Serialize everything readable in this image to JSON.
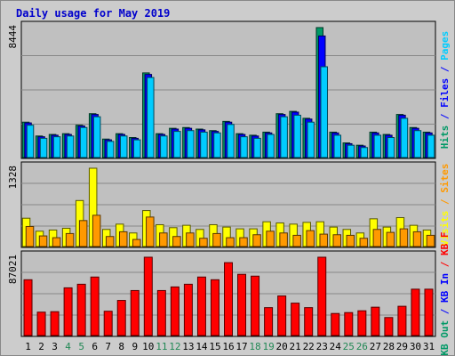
{
  "colors": {
    "background": "#cccccc",
    "panel": "#c0c0c0",
    "grid": "#888888",
    "border": "#000000",
    "title": "#0000cc",
    "hits": "#009966",
    "files": "#0000ff",
    "pages": "#00ccff",
    "visits": "#ffff00",
    "sites": "#ff9900",
    "kbout": "#009966",
    "kbin": "#0000ff",
    "kbf": "#ff0000",
    "weekend": "#228855",
    "weekday": "#000000"
  },
  "chart_data": {
    "type": "bar",
    "title": "Daily usage for May 2019",
    "categories": [
      "1",
      "2",
      "3",
      "4",
      "5",
      "6",
      "7",
      "8",
      "9",
      "10",
      "11",
      "12",
      "13",
      "14",
      "15",
      "16",
      "17",
      "18",
      "19",
      "20",
      "21",
      "22",
      "23",
      "24",
      "25",
      "26",
      "27",
      "28",
      "29",
      "30",
      "31"
    ],
    "weekend_days": [
      "4",
      "5",
      "11",
      "12",
      "18",
      "19",
      "25",
      "26"
    ],
    "panels": [
      {
        "max_label": "8444",
        "ymax": 8444,
        "side_legend": [
          {
            "text": "Hits",
            "color_key": "hits"
          },
          {
            "text": " / ",
            "color_key": "files"
          },
          {
            "text": "Files",
            "color_key": "files"
          },
          {
            "text": " / ",
            "color_key": "files"
          },
          {
            "text": "Pages",
            "color_key": "pages"
          }
        ],
        "series": [
          {
            "name": "Hits",
            "color_key": "hits",
            "values": [
              2300,
              1400,
              1500,
              1550,
              2100,
              2850,
              1200,
              1550,
              1300,
              5500,
              1550,
              1900,
              1950,
              1850,
              1750,
              2350,
              1550,
              1450,
              1650,
              2850,
              3000,
              2550,
              8444,
              1650,
              950,
              800,
              1650,
              1500,
              2800,
              1950,
              1650
            ]
          },
          {
            "name": "Files",
            "color_key": "files",
            "values": [
              2250,
              1350,
              1450,
              1500,
              2050,
              2800,
              1150,
              1500,
              1250,
              5400,
              1500,
              1850,
              1900,
              1800,
              1700,
              2300,
              1500,
              1400,
              1600,
              2800,
              2950,
              2500,
              7900,
              1600,
              900,
              750,
              1600,
              1450,
              2750,
              1900,
              1600
            ]
          },
          {
            "name": "Pages",
            "color_key": "pages",
            "values": [
              2100,
              1250,
              1350,
              1400,
              1950,
              2650,
              1050,
              1400,
              1150,
              5200,
              1400,
              1700,
              1750,
              1650,
              1600,
              2150,
              1350,
              1250,
              1500,
              2650,
              2750,
              2300,
              5900,
              1450,
              800,
              650,
              1450,
              1300,
              2550,
              1750,
              1450
            ]
          }
        ]
      },
      {
        "max_label": "1328",
        "ymax": 1328,
        "side_legend": [
          {
            "text": "Visits",
            "color_key": "visits"
          },
          {
            "text": " / ",
            "color_key": "sites"
          },
          {
            "text": "Sites",
            "color_key": "sites"
          }
        ],
        "series": [
          {
            "name": "Visits",
            "color_key": "visits",
            "values": [
              480,
              260,
              280,
              310,
              780,
              1328,
              290,
              380,
              230,
              610,
              370,
              320,
              360,
              290,
              370,
              330,
              300,
              300,
              420,
              400,
              380,
              410,
              420,
              330,
              290,
              230,
              470,
              330,
              490,
              360,
              280
            ]
          },
          {
            "name": "Sites",
            "color_key": "sites",
            "values": [
              340,
              180,
              150,
              220,
              440,
              530,
              170,
              250,
              120,
              500,
              230,
              170,
              230,
              140,
              220,
              150,
              150,
              200,
              260,
              230,
              190,
              270,
              210,
              200,
              190,
              140,
              290,
              240,
              300,
              250,
              190
            ]
          }
        ]
      },
      {
        "max_label": "87021",
        "ymax": 87021,
        "side_legend": [
          {
            "text": "KB Out",
            "color_key": "kbout"
          },
          {
            "text": " / ",
            "color_key": "kbin"
          },
          {
            "text": "KB In",
            "color_key": "kbin"
          },
          {
            "text": " / ",
            "color_key": "kbf"
          },
          {
            "text": "KB F",
            "color_key": "kbf"
          }
        ],
        "series": [
          {
            "name": "KB F",
            "color_key": "kbf",
            "values": [
              62000,
              26000,
              26500,
              53000,
              57000,
              65000,
              27000,
              39000,
              50000,
              87021,
              50000,
              54000,
              57000,
              65000,
              62000,
              81000,
              68000,
              66000,
              31000,
              44000,
              36000,
              31000,
              87021,
              24500,
              25500,
              27500,
              31500,
              20000,
              32500,
              51500,
              51500
            ]
          }
        ]
      }
    ]
  }
}
